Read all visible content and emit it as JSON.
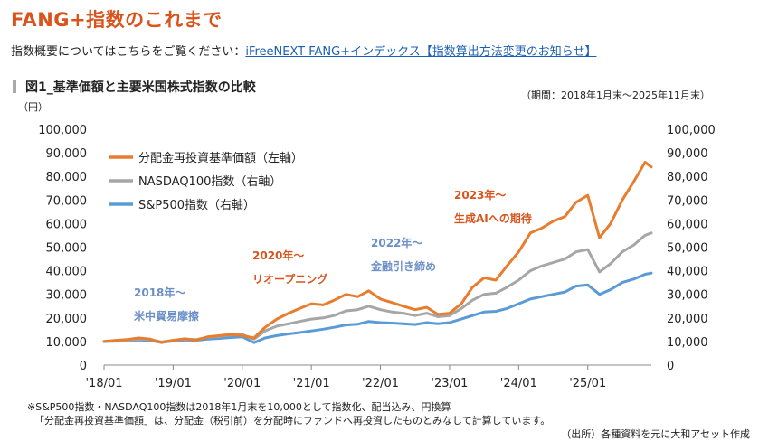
{
  "page": {
    "title": "FANG+指数のこれまで",
    "intro_text": "指数概要についてはこちらをご覧ください：",
    "intro_link": "iFreeNEXT FANG+インデックス【指数算出方法変更のお知らせ】",
    "figure_title": "図1_基準価額と主要米国株式指数の比較",
    "period": "（期間：2018年1月末〜2025年11月末）",
    "footnote1": "※S&P500指数・NASDAQ100指数は2018年1月末を10,000として指数化、配当込み、円換算",
    "footnote2": "「分配金再投資基準価額」は、分配金（税引前）を分配時にファンドへ再投資したものとみなして計算しています。",
    "source": "（出所）各種資料を元に大和アセット作成"
  },
  "colors": {
    "fund": "#e87d2f",
    "nasdaq": "#a6a6a6",
    "sp500": "#5b9bd5",
    "annotation_orange": "#d9541c",
    "annotation_blue": "#6b8fc7"
  },
  "chart_data": {
    "type": "line",
    "y_unit_label": "（円）",
    "ylim": [
      0,
      100000
    ],
    "y_ticks": [
      "0",
      "10,000",
      "20,000",
      "30,000",
      "40,000",
      "50,000",
      "60,000",
      "70,000",
      "80,000",
      "90,000",
      "100,000"
    ],
    "y_right_ticks": [
      "0",
      "10,000",
      "20,000",
      "30,000",
      "40,000",
      "50,000",
      "60,000",
      "70,000",
      "80,000",
      "90,000",
      "100,000"
    ],
    "x_ticks": [
      "'18/01",
      "'19/01",
      "'20/01",
      "'21/01",
      "'22/01",
      "'23/01",
      "'24/01",
      "'25/01"
    ],
    "x_tick_positions": [
      2018.0,
      2019.0,
      2020.0,
      2021.0,
      2022.0,
      2023.0,
      2024.0,
      2025.0
    ],
    "x_start": 2018.0,
    "x_end": 2025.92,
    "series": [
      {
        "name": "分配金再投資基準価額（左軸）",
        "color": "#e87d2f",
        "x": [
          2018.0,
          2018.17,
          2018.33,
          2018.5,
          2018.67,
          2018.83,
          2019.0,
          2019.17,
          2019.33,
          2019.5,
          2019.67,
          2019.83,
          2020.0,
          2020.17,
          2020.33,
          2020.5,
          2020.67,
          2020.83,
          2021.0,
          2021.17,
          2021.33,
          2021.5,
          2021.67,
          2021.83,
          2022.0,
          2022.17,
          2022.33,
          2022.5,
          2022.67,
          2022.83,
          2023.0,
          2023.17,
          2023.33,
          2023.5,
          2023.67,
          2023.83,
          2024.0,
          2024.17,
          2024.33,
          2024.5,
          2024.67,
          2024.83,
          2025.0,
          2025.17,
          2025.33,
          2025.5,
          2025.67,
          2025.83,
          2025.92
        ],
        "values": [
          10000,
          10500,
          10800,
          11500,
          11000,
          9500,
          10500,
          11200,
          10500,
          12000,
          12500,
          13000,
          12500,
          11500,
          16000,
          19500,
          22000,
          24000,
          26000,
          25500,
          27500,
          30000,
          29000,
          31500,
          28000,
          26500,
          25000,
          23500,
          24500,
          21500,
          22000,
          26000,
          33000,
          37000,
          36000,
          42000,
          48000,
          56000,
          58000,
          61000,
          63000,
          69000,
          72000,
          54000,
          60000,
          70000,
          78000,
          86000,
          84000
        ]
      },
      {
        "name": "NASDAQ100指数（右軸）",
        "color": "#a6a6a6",
        "x": [
          2018.0,
          2018.17,
          2018.33,
          2018.5,
          2018.67,
          2018.83,
          2019.0,
          2019.17,
          2019.33,
          2019.5,
          2019.67,
          2019.83,
          2020.0,
          2020.17,
          2020.33,
          2020.5,
          2020.67,
          2020.83,
          2021.0,
          2021.17,
          2021.33,
          2021.5,
          2021.67,
          2021.83,
          2022.0,
          2022.17,
          2022.33,
          2022.5,
          2022.67,
          2022.83,
          2023.0,
          2023.17,
          2023.33,
          2023.5,
          2023.67,
          2023.83,
          2024.0,
          2024.17,
          2024.33,
          2024.5,
          2024.67,
          2024.83,
          2025.0,
          2025.17,
          2025.33,
          2025.5,
          2025.67,
          2025.83,
          2025.92
        ],
        "values": [
          10000,
          10300,
          10500,
          11000,
          10800,
          9800,
          10500,
          11000,
          10800,
          11800,
          12200,
          12800,
          13000,
          11000,
          14500,
          16500,
          17500,
          18500,
          19500,
          20000,
          21000,
          23000,
          23500,
          25000,
          23500,
          22500,
          22000,
          21000,
          22000,
          20500,
          21000,
          24000,
          27500,
          30000,
          30500,
          33000,
          36000,
          40000,
          42000,
          43500,
          45000,
          48000,
          49000,
          39500,
          43000,
          48000,
          51000,
          55000,
          56000
        ]
      },
      {
        "name": "S&P500指数（右軸）",
        "color": "#5b9bd5",
        "x": [
          2018.0,
          2018.17,
          2018.33,
          2018.5,
          2018.67,
          2018.83,
          2019.0,
          2019.17,
          2019.33,
          2019.5,
          2019.67,
          2019.83,
          2020.0,
          2020.17,
          2020.33,
          2020.5,
          2020.67,
          2020.83,
          2021.0,
          2021.17,
          2021.33,
          2021.5,
          2021.67,
          2021.83,
          2022.0,
          2022.17,
          2022.33,
          2022.5,
          2022.67,
          2022.83,
          2023.0,
          2023.17,
          2023.33,
          2023.5,
          2023.67,
          2023.83,
          2024.0,
          2024.17,
          2024.33,
          2024.5,
          2024.67,
          2024.83,
          2025.0,
          2025.17,
          2025.33,
          2025.5,
          2025.67,
          2025.83,
          2025.92
        ],
        "values": [
          10000,
          10100,
          10300,
          10600,
          10400,
          9600,
          10200,
          10600,
          10500,
          11000,
          11300,
          11700,
          12000,
          9500,
          11500,
          12500,
          13200,
          13800,
          14500,
          15200,
          16000,
          17000,
          17300,
          18500,
          18000,
          17800,
          17500,
          17200,
          18000,
          17500,
          18000,
          19500,
          21000,
          22500,
          22800,
          24000,
          26000,
          28000,
          29000,
          30000,
          31000,
          33500,
          34000,
          30000,
          32000,
          35000,
          36500,
          38500,
          39000
        ]
      }
    ],
    "annotations": [
      {
        "line1": "2018年〜",
        "line2": "米中貿易摩擦",
        "color": "#6b8fc7"
      },
      {
        "line1": "2020年〜",
        "line2": "リオープニング",
        "color": "#d9541c"
      },
      {
        "line1": "2022年〜",
        "line2": "金融引き締め",
        "color": "#6b8fc7"
      },
      {
        "line1": "2023年〜",
        "line2": "生成AIへの期待",
        "color": "#d9541c"
      }
    ]
  }
}
